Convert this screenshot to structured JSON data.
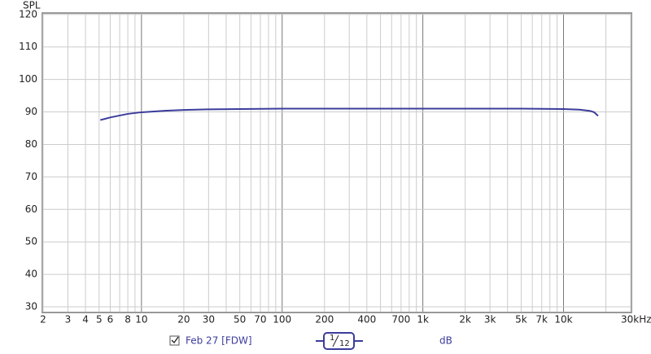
{
  "chart_data": {
    "type": "line",
    "y_label": "SPL",
    "log_x": true,
    "xlim": [
      2,
      30000
    ],
    "ylim": [
      28.5,
      120.2
    ],
    "xticks": [
      2,
      3,
      4,
      5,
      6,
      8,
      10,
      20,
      30,
      50,
      70,
      100,
      200,
      400,
      700,
      {
        "value": 1000,
        "label": "1k"
      },
      {
        "value": 2000,
        "label": "2k"
      },
      {
        "value": 3000,
        "label": "3k"
      },
      {
        "value": 5000,
        "label": "5k"
      },
      {
        "value": 7000,
        "label": "7k"
      },
      {
        "value": 10000,
        "label": "10k"
      },
      {
        "value": 30000,
        "label": "30kHz"
      }
    ],
    "x_minor_grid": [
      7,
      9,
      40,
      60,
      80,
      90,
      300,
      500,
      600,
      800,
      900,
      4000,
      6000,
      8000,
      9000,
      20000
    ],
    "yticks": [
      30,
      40,
      50,
      60,
      70,
      80,
      90,
      100,
      110,
      120
    ],
    "grid": true,
    "x": [
      5.1,
      6,
      7,
      8,
      10,
      15,
      20,
      30,
      50,
      100,
      200,
      500,
      1000,
      2000,
      5000,
      10000,
      13000,
      15500,
      16500,
      17600
    ],
    "series": [
      {
        "name": "Feb 27 [FDW]",
        "color": "#3c3c9c",
        "values": [
          87.5,
          88.3,
          88.9,
          89.4,
          89.9,
          90.4,
          90.6,
          90.8,
          90.9,
          91,
          91,
          91,
          91,
          91,
          91,
          90.9,
          90.7,
          90.3,
          89.9,
          88.8
        ]
      }
    ],
    "smoothing": {
      "numerator": "1",
      "denominator": "12"
    },
    "unit": "dB"
  }
}
